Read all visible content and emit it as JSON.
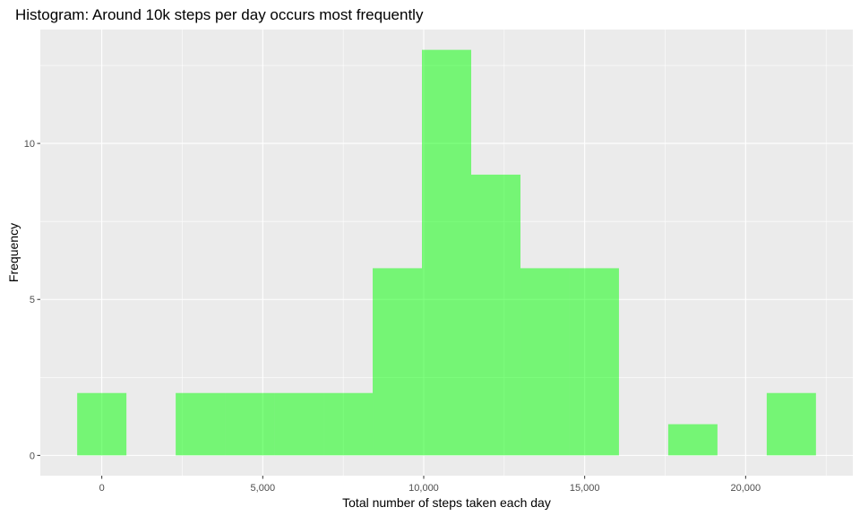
{
  "chart_data": {
    "type": "bar",
    "title": "Histogram: Around 10k steps per day occurs most frequently",
    "xlabel": "Total number of steps taken each day",
    "ylabel": "Frequency",
    "bin_width": 1530,
    "bins": [
      {
        "x_start": -765,
        "x_end": 765,
        "count": 2
      },
      {
        "x_start": 765,
        "x_end": 2295,
        "count": 0
      },
      {
        "x_start": 2295,
        "x_end": 3825,
        "count": 2
      },
      {
        "x_start": 3825,
        "x_end": 5355,
        "count": 2
      },
      {
        "x_start": 5355,
        "x_end": 6885,
        "count": 2
      },
      {
        "x_start": 6885,
        "x_end": 8415,
        "count": 2
      },
      {
        "x_start": 8415,
        "x_end": 9945,
        "count": 6
      },
      {
        "x_start": 9945,
        "x_end": 11475,
        "count": 13
      },
      {
        "x_start": 11475,
        "x_end": 13005,
        "count": 9
      },
      {
        "x_start": 13005,
        "x_end": 14535,
        "count": 6
      },
      {
        "x_start": 14535,
        "x_end": 16065,
        "count": 6
      },
      {
        "x_start": 16065,
        "x_end": 17595,
        "count": 0
      },
      {
        "x_start": 17595,
        "x_end": 19125,
        "count": 1
      },
      {
        "x_start": 19125,
        "x_end": 20655,
        "count": 0
      },
      {
        "x_start": 20655,
        "x_end": 22185,
        "count": 2
      }
    ],
    "xlim": [
      -1910,
      23330
    ],
    "ylim": [
      -0.65,
      13.65
    ],
    "x_ticks": [
      {
        "value": 0,
        "label": "0"
      },
      {
        "value": 5000,
        "label": "5,000"
      },
      {
        "value": 10000,
        "label": "10,000"
      },
      {
        "value": 15000,
        "label": "15,000"
      },
      {
        "value": 20000,
        "label": "20,000"
      }
    ],
    "y_ticks": [
      {
        "value": 0,
        "label": "0"
      },
      {
        "value": 5,
        "label": "5"
      },
      {
        "value": 10,
        "label": "10"
      }
    ],
    "grid": true,
    "colors": {
      "panel": "#ebebeb",
      "grid": "#ffffff",
      "fill": "#00ff00",
      "fill_opacity": 0.5
    }
  }
}
